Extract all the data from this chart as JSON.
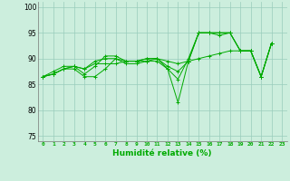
{
  "title": "",
  "xlabel": "Humidité relative (%)",
  "ylabel": "",
  "xlim": [
    -0.5,
    23.5
  ],
  "ylim": [
    74,
    101
  ],
  "yticks": [
    75,
    80,
    85,
    90,
    95,
    100
  ],
  "xticks": [
    0,
    1,
    2,
    3,
    4,
    5,
    6,
    7,
    8,
    9,
    10,
    11,
    12,
    13,
    14,
    15,
    16,
    17,
    18,
    19,
    20,
    21,
    22,
    23
  ],
  "background_color": "#cceedd",
  "grid_color": "#99ccbb",
  "line_color": "#00aa00",
  "lines": [
    [
      86.5,
      87.0,
      88.0,
      88.5,
      88.0,
      89.5,
      90.0,
      90.0,
      89.5,
      89.5,
      89.5,
      89.5,
      88.0,
      81.5,
      89.5,
      95.0,
      95.0,
      95.0,
      95.0,
      91.5,
      91.5,
      86.5,
      93.0
    ],
    [
      86.5,
      87.0,
      88.0,
      88.5,
      87.0,
      88.5,
      90.5,
      90.5,
      89.5,
      89.5,
      90.0,
      90.0,
      88.5,
      87.5,
      89.5,
      95.0,
      95.0,
      94.5,
      95.0,
      91.5,
      91.5,
      86.5,
      93.0
    ],
    [
      86.5,
      87.0,
      88.0,
      88.0,
      86.5,
      86.5,
      88.0,
      90.0,
      89.0,
      89.0,
      89.5,
      90.0,
      88.0,
      86.0,
      90.0,
      95.0,
      95.0,
      95.0,
      95.0,
      91.5,
      91.5,
      86.5,
      93.0
    ],
    [
      86.5,
      87.5,
      88.5,
      88.5,
      88.0,
      89.0,
      89.0,
      89.0,
      89.5,
      89.5,
      90.0,
      90.0,
      89.5,
      89.0,
      89.5,
      90.0,
      90.5,
      91.0,
      91.5,
      91.5,
      91.5,
      86.5,
      93.0
    ]
  ]
}
